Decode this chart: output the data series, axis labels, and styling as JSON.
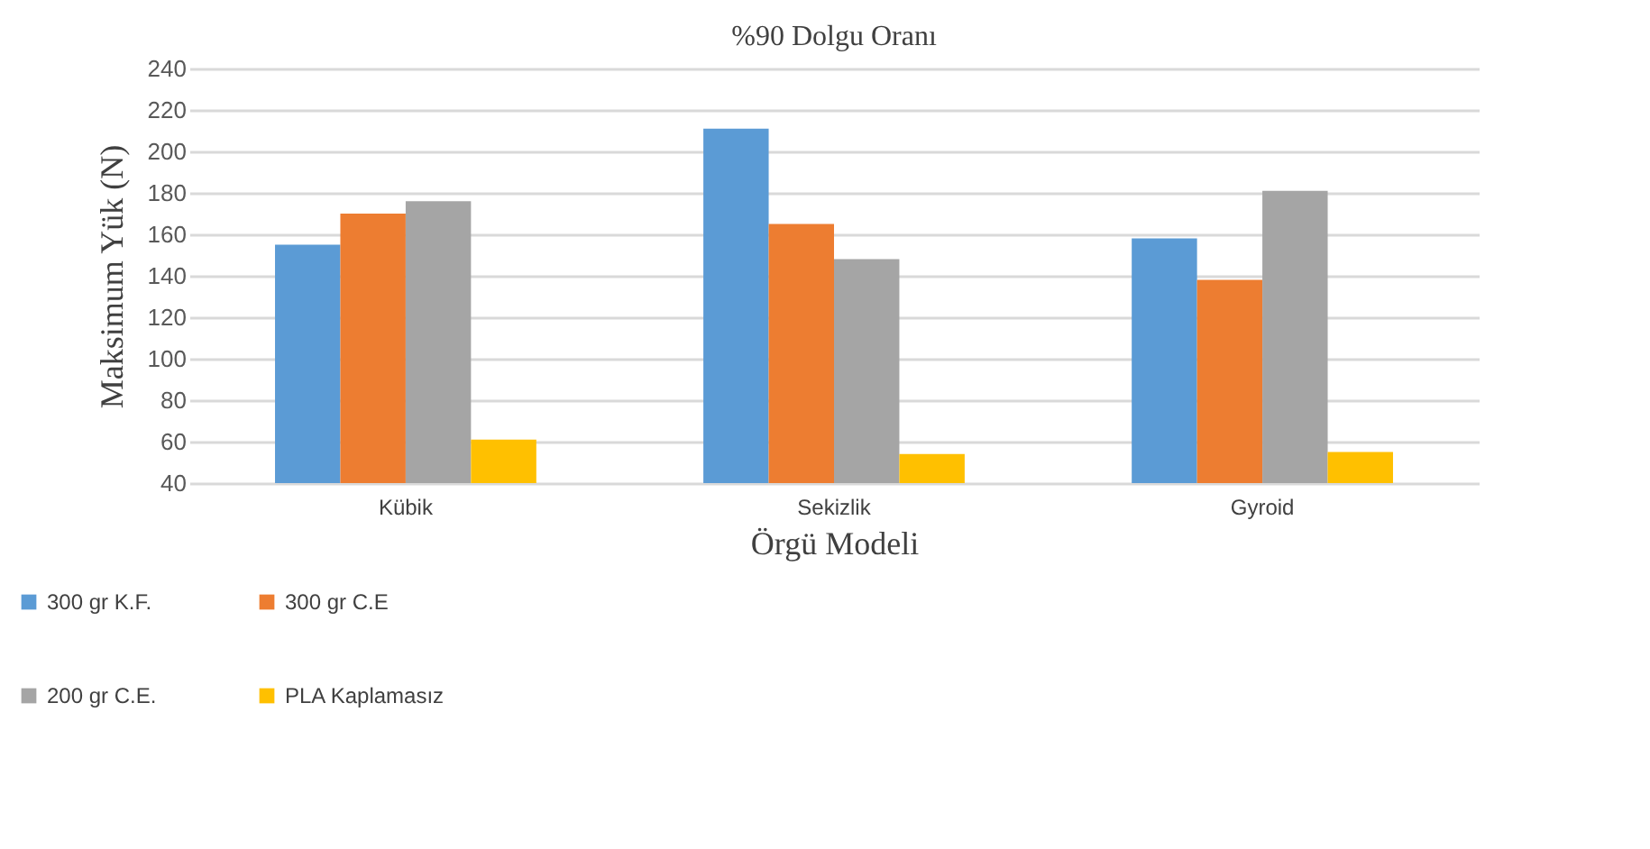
{
  "chart_data": {
    "type": "bar",
    "title": "%90 Dolgu Oranı",
    "xlabel": "Örgü Modeli",
    "ylabel": "Maksimum Yük (N)",
    "categories": [
      "Kübik",
      "Sekizlik",
      "Gyroid"
    ],
    "series": [
      {
        "name": "300 gr K.F.",
        "color": "#5b9bd5",
        "values": [
          155,
          211,
          158
        ]
      },
      {
        "name": "300 gr C.E",
        "color": "#ed7d31",
        "values": [
          170,
          165,
          138
        ]
      },
      {
        "name": "200 gr C.E.",
        "color": "#a5a5a5",
        "values": [
          176,
          148,
          181
        ]
      },
      {
        "name": "PLA Kaplamasız",
        "color": "#ffc000",
        "values": [
          61,
          54,
          55
        ]
      }
    ],
    "ylim": [
      40,
      240
    ],
    "yticks": [
      40,
      60,
      80,
      100,
      120,
      140,
      160,
      180,
      200,
      220,
      240
    ],
    "grid": "y",
    "legend": "bottom left"
  }
}
